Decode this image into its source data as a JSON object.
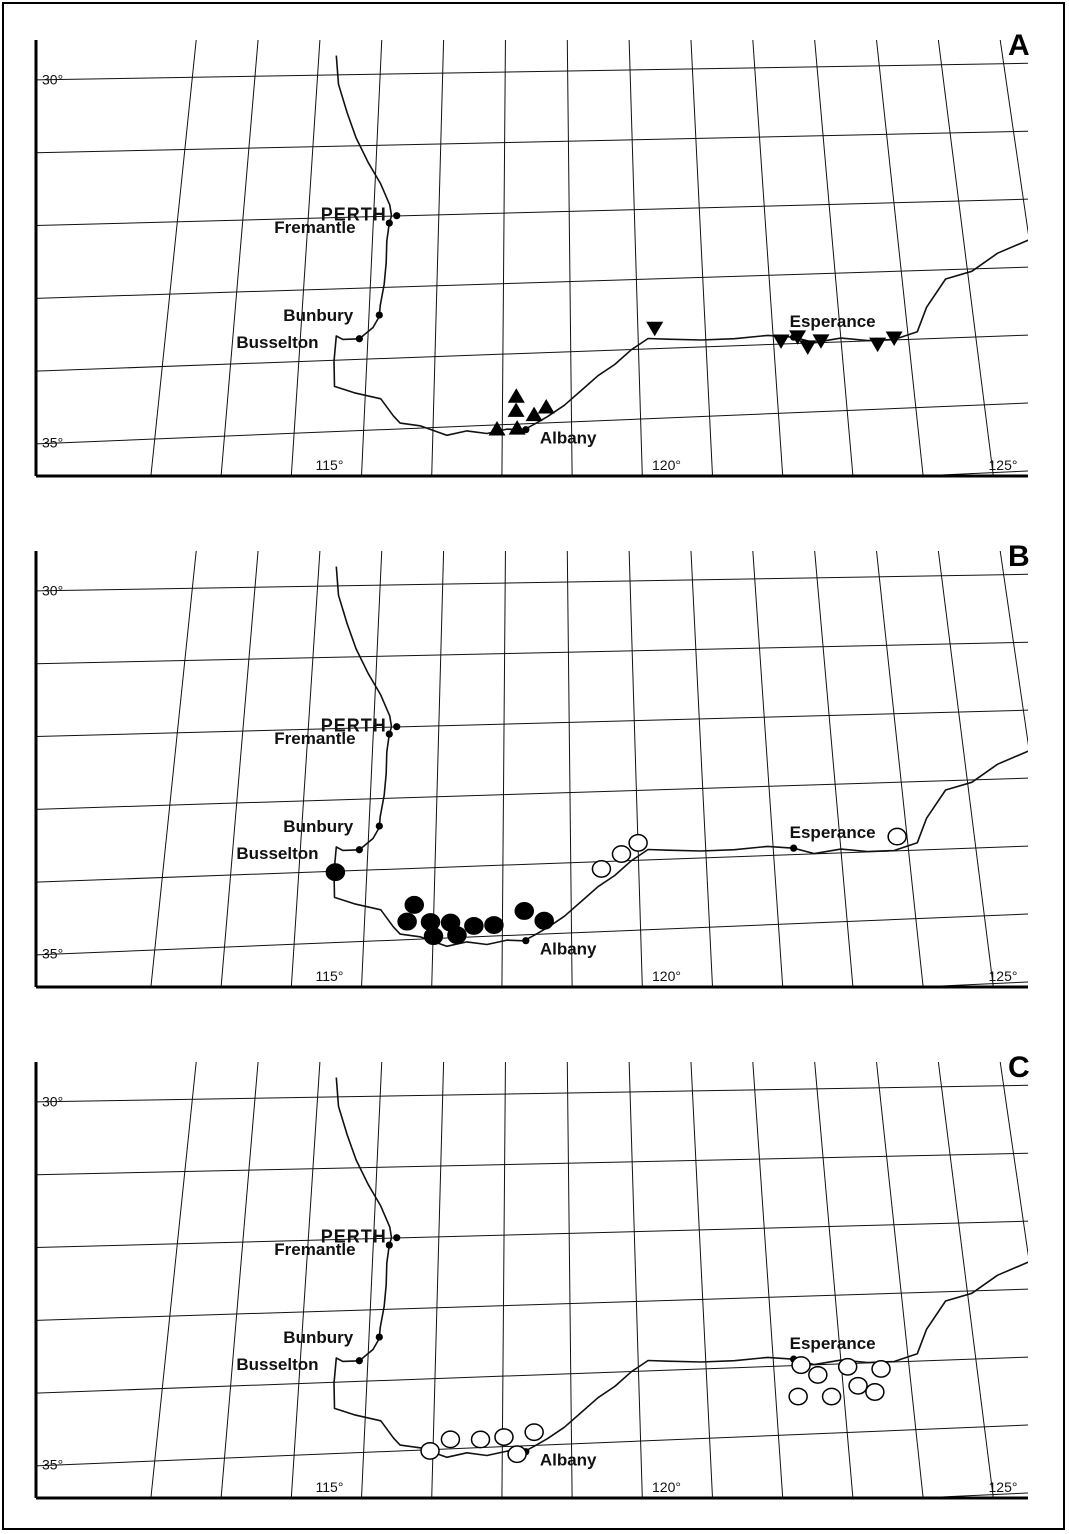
{
  "panels": [
    {
      "id": "A",
      "letter": "A",
      "marker": "triangle",
      "lat_labels": [
        "30°",
        "35°"
      ],
      "lon_labels": [
        "115°",
        "120°",
        "125°"
      ],
      "towns": [
        {
          "name": "PERTH",
          "lon": 115.86,
          "lat": 31.95
        },
        {
          "name": "Fremantle",
          "lon": 115.75,
          "lat": 32.05
        },
        {
          "name": "Bunbury",
          "lon": 115.64,
          "lat": 33.33
        },
        {
          "name": "Busselton",
          "lon": 115.35,
          "lat": 33.65
        },
        {
          "name": "Albany",
          "lon": 117.88,
          "lat": 35.02
        },
        {
          "name": "Esperance",
          "lon": 121.89,
          "lat": 33.86
        }
      ],
      "records": [
        {
          "lon": 117.45,
          "lat": 35.0,
          "dir": "up"
        },
        {
          "lon": 117.73,
          "lat": 34.55,
          "dir": "up"
        },
        {
          "lon": 117.73,
          "lat": 34.75,
          "dir": "up"
        },
        {
          "lon": 117.75,
          "lat": 35.0,
          "dir": "up"
        },
        {
          "lon": 118.0,
          "lat": 34.82,
          "dir": "up"
        },
        {
          "lon": 118.18,
          "lat": 34.72,
          "dir": "up"
        },
        {
          "lon": 119.8,
          "lat": 33.65,
          "dir": "down"
        },
        {
          "lon": 121.7,
          "lat": 33.9,
          "dir": "down"
        },
        {
          "lon": 121.95,
          "lat": 33.85,
          "dir": "down"
        },
        {
          "lon": 122.1,
          "lat": 34.0,
          "dir": "down"
        },
        {
          "lon": 122.3,
          "lat": 33.92,
          "dir": "down"
        },
        {
          "lon": 123.15,
          "lat": 34.0,
          "dir": "down"
        },
        {
          "lon": 123.4,
          "lat": 33.92,
          "dir": "down"
        }
      ]
    },
    {
      "id": "B",
      "letter": "B",
      "marker": "circle",
      "lat_labels": [
        "30°",
        "35°"
      ],
      "lon_labels": [
        "115°",
        "120°",
        "125°"
      ],
      "towns": [
        {
          "name": "PERTH",
          "lon": 115.86,
          "lat": 31.95
        },
        {
          "name": "Fremantle",
          "lon": 115.75,
          "lat": 32.05
        },
        {
          "name": "Bunbury",
          "lon": 115.64,
          "lat": 33.33
        },
        {
          "name": "Busselton",
          "lon": 115.35,
          "lat": 33.65
        },
        {
          "name": "Albany",
          "lon": 117.88,
          "lat": 35.02
        },
        {
          "name": "Esperance",
          "lon": 121.89,
          "lat": 33.86
        }
      ],
      "records": [
        {
          "lon": 115.0,
          "lat": 33.95,
          "filled": true
        },
        {
          "lon": 116.2,
          "lat": 34.45,
          "filled": true
        },
        {
          "lon": 116.1,
          "lat": 34.68,
          "filled": true
        },
        {
          "lon": 116.45,
          "lat": 34.7,
          "filled": true
        },
        {
          "lon": 116.5,
          "lat": 34.9,
          "filled": true
        },
        {
          "lon": 116.75,
          "lat": 34.72,
          "filled": true
        },
        {
          "lon": 116.85,
          "lat": 34.9,
          "filled": true
        },
        {
          "lon": 117.1,
          "lat": 34.78,
          "filled": true
        },
        {
          "lon": 117.4,
          "lat": 34.78,
          "filled": true
        },
        {
          "lon": 117.85,
          "lat": 34.6,
          "filled": true
        },
        {
          "lon": 118.15,
          "lat": 34.75,
          "filled": true
        },
        {
          "lon": 119.0,
          "lat": 34.05,
          "filled": false
        },
        {
          "lon": 119.3,
          "lat": 33.85,
          "filled": false
        },
        {
          "lon": 119.55,
          "lat": 33.7,
          "filled": false
        },
        {
          "lon": 123.45,
          "lat": 33.75,
          "filled": false
        }
      ]
    },
    {
      "id": "C",
      "letter": "C",
      "marker": "circle",
      "lat_labels": [
        "30°",
        "35°"
      ],
      "lon_labels": [
        "115°",
        "120°",
        "125°"
      ],
      "towns": [
        {
          "name": "PERTH",
          "lon": 115.86,
          "lat": 31.95
        },
        {
          "name": "Fremantle",
          "lon": 115.75,
          "lat": 32.05
        },
        {
          "name": "Bunbury",
          "lon": 115.64,
          "lat": 33.33
        },
        {
          "name": "Busselton",
          "lon": 115.35,
          "lat": 33.65
        },
        {
          "name": "Albany",
          "lon": 117.88,
          "lat": 35.02
        },
        {
          "name": "Esperance",
          "lon": 121.89,
          "lat": 33.86
        }
      ],
      "records": [
        {
          "lon": 116.45,
          "lat": 34.95,
          "filled": false
        },
        {
          "lon": 116.75,
          "lat": 34.8,
          "filled": false
        },
        {
          "lon": 117.2,
          "lat": 34.82,
          "filled": false
        },
        {
          "lon": 117.55,
          "lat": 34.8,
          "filled": false
        },
        {
          "lon": 117.75,
          "lat": 35.05,
          "filled": false
        },
        {
          "lon": 118.0,
          "lat": 34.75,
          "filled": false
        },
        {
          "lon": 122.0,
          "lat": 33.95,
          "filled": false
        },
        {
          "lon": 122.25,
          "lat": 34.1,
          "filled": false
        },
        {
          "lon": 122.7,
          "lat": 34.0,
          "filled": false
        },
        {
          "lon": 123.2,
          "lat": 34.05,
          "filled": false
        },
        {
          "lon": 121.95,
          "lat": 34.4,
          "filled": false
        },
        {
          "lon": 122.45,
          "lat": 34.42,
          "filled": false
        },
        {
          "lon": 122.85,
          "lat": 34.28,
          "filled": false
        },
        {
          "lon": 123.1,
          "lat": 34.38,
          "filled": false
        }
      ]
    }
  ],
  "coastline": [
    [
      114.85,
      29.7
    ],
    [
      114.9,
      30.1
    ],
    [
      115.05,
      30.5
    ],
    [
      115.2,
      30.85
    ],
    [
      115.4,
      31.2
    ],
    [
      115.6,
      31.5
    ],
    [
      115.75,
      31.8
    ],
    [
      115.78,
      31.95
    ],
    [
      115.75,
      32.05
    ],
    [
      115.72,
      32.3
    ],
    [
      115.72,
      32.6
    ],
    [
      115.7,
      32.9
    ],
    [
      115.65,
      33.2
    ],
    [
      115.64,
      33.35
    ],
    [
      115.55,
      33.5
    ],
    [
      115.35,
      33.65
    ],
    [
      115.1,
      33.65
    ],
    [
      115.0,
      33.6
    ],
    [
      114.98,
      33.95
    ],
    [
      115.0,
      34.3
    ],
    [
      115.3,
      34.4
    ],
    [
      115.7,
      34.5
    ],
    [
      115.9,
      34.75
    ],
    [
      116.0,
      34.85
    ],
    [
      116.3,
      34.9
    ],
    [
      116.7,
      35.05
    ],
    [
      117.0,
      35.0
    ],
    [
      117.3,
      35.05
    ],
    [
      117.6,
      35.0
    ],
    [
      117.85,
      35.02
    ],
    [
      118.0,
      34.95
    ],
    [
      118.2,
      34.85
    ],
    [
      118.45,
      34.7
    ],
    [
      118.7,
      34.5
    ],
    [
      118.95,
      34.3
    ],
    [
      119.2,
      34.15
    ],
    [
      119.45,
      33.95
    ],
    [
      119.7,
      33.8
    ],
    [
      120.0,
      33.82
    ],
    [
      120.5,
      33.85
    ],
    [
      121.0,
      33.85
    ],
    [
      121.5,
      33.82
    ],
    [
      121.89,
      33.86
    ],
    [
      122.2,
      33.95
    ],
    [
      122.6,
      33.9
    ],
    [
      123.0,
      33.95
    ],
    [
      123.4,
      33.95
    ],
    [
      123.75,
      33.85
    ],
    [
      123.9,
      33.5
    ],
    [
      124.2,
      33.1
    ],
    [
      124.6,
      33.0
    ],
    [
      125.0,
      32.75
    ],
    [
      125.4,
      32.6
    ],
    [
      125.8,
      32.45
    ]
  ]
}
